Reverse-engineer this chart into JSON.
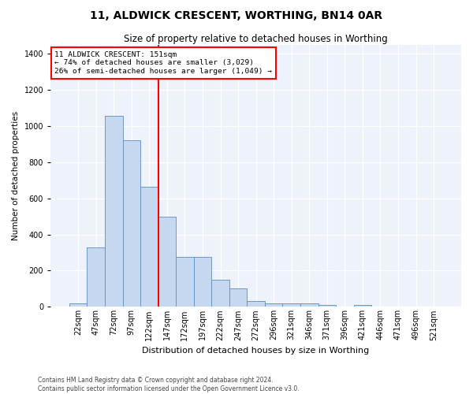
{
  "title": "11, ALDWICK CRESCENT, WORTHING, BN14 0AR",
  "subtitle": "Size of property relative to detached houses in Worthing",
  "xlabel": "Distribution of detached houses by size in Worthing",
  "ylabel": "Number of detached properties",
  "categories": [
    "22sqm",
    "47sqm",
    "72sqm",
    "97sqm",
    "122sqm",
    "147sqm",
    "172sqm",
    "197sqm",
    "222sqm",
    "247sqm",
    "272sqm",
    "296sqm",
    "321sqm",
    "346sqm",
    "371sqm",
    "396sqm",
    "421sqm",
    "446sqm",
    "471sqm",
    "496sqm",
    "521sqm"
  ],
  "values": [
    18,
    330,
    1055,
    920,
    665,
    500,
    275,
    275,
    150,
    100,
    33,
    20,
    20,
    20,
    10,
    0,
    10,
    0,
    0,
    0,
    0
  ],
  "bar_color": "#c5d8f0",
  "bar_edge_color": "#5a8fc2",
  "vline_color": "red",
  "vline_x_index": 5,
  "annotation_text": "11 ALDWICK CRESCENT: 151sqm\n← 74% of detached houses are smaller (3,029)\n26% of semi-detached houses are larger (1,049) →",
  "annotation_box_color": "red",
  "background_color": "#eef2fb",
  "grid_color": "white",
  "footer": "Contains HM Land Registry data © Crown copyright and database right 2024.\nContains public sector information licensed under the Open Government Licence v3.0.",
  "ylim": [
    0,
    1450
  ],
  "yticks": [
    0,
    200,
    400,
    600,
    800,
    1000,
    1200,
    1400
  ],
  "title_fontsize": 10,
  "subtitle_fontsize": 8.5,
  "xlabel_fontsize": 8,
  "ylabel_fontsize": 7.5,
  "tick_fontsize": 7,
  "footer_fontsize": 5.5
}
